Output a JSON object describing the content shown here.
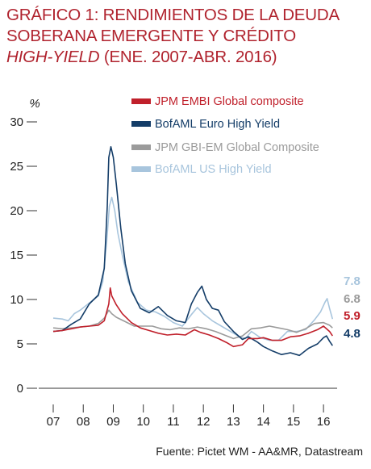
{
  "title": {
    "line1": "GRÁFICO 1: RENDIMIENTOS DE LA DEUDA",
    "line2": "SOBERANA EMERGENTE Y CRÉDITO",
    "line3_italic": "HIGH-YIELD",
    "line3_rest": " (ENE. 2007-ABR. 2016)"
  },
  "source": "Fuente: Pictet WM - AA&MR, Datastream",
  "chart_data": {
    "type": "line",
    "ylabel": "%",
    "ylim": [
      0,
      30
    ],
    "yticks": [
      "0",
      "5",
      "10",
      "15",
      "20",
      "25",
      "30"
    ],
    "xlim": [
      2007.0,
      2016.4
    ],
    "xticks": [
      "07",
      "08",
      "09",
      "10",
      "11",
      "12",
      "13",
      "14",
      "15",
      "16"
    ],
    "legend_position": "top-right",
    "series": [
      {
        "name": "JPM EMBI Global composite",
        "color": "#c0202b",
        "end_label": "5.9",
        "points": [
          [
            2007.0,
            6.4
          ],
          [
            2007.3,
            6.5
          ],
          [
            2007.6,
            6.7
          ],
          [
            2007.9,
            6.9
          ],
          [
            2008.2,
            7.0
          ],
          [
            2008.5,
            7.1
          ],
          [
            2008.7,
            7.6
          ],
          [
            2008.85,
            9.5
          ],
          [
            2008.9,
            11.3
          ],
          [
            2008.95,
            10.4
          ],
          [
            2009.1,
            9.4
          ],
          [
            2009.3,
            8.4
          ],
          [
            2009.6,
            7.4
          ],
          [
            2009.9,
            6.8
          ],
          [
            2010.2,
            6.5
          ],
          [
            2010.5,
            6.2
          ],
          [
            2010.8,
            6.0
          ],
          [
            2011.1,
            6.1
          ],
          [
            2011.4,
            6.0
          ],
          [
            2011.7,
            6.6
          ],
          [
            2011.9,
            6.3
          ],
          [
            2012.2,
            6.0
          ],
          [
            2012.5,
            5.6
          ],
          [
            2012.8,
            5.1
          ],
          [
            2013.0,
            4.7
          ],
          [
            2013.3,
            4.9
          ],
          [
            2013.5,
            5.6
          ],
          [
            2013.8,
            5.6
          ],
          [
            2014.0,
            5.7
          ],
          [
            2014.3,
            5.4
          ],
          [
            2014.6,
            5.4
          ],
          [
            2014.9,
            5.8
          ],
          [
            2015.2,
            5.9
          ],
          [
            2015.5,
            6.2
          ],
          [
            2015.8,
            6.6
          ],
          [
            2016.0,
            7.0
          ],
          [
            2016.2,
            6.4
          ],
          [
            2016.3,
            5.9
          ]
        ]
      },
      {
        "name": "BofAML Euro High Yield",
        "color": "#143d68",
        "end_label": "4.8",
        "points": [
          [
            2007.0,
            6.4
          ],
          [
            2007.3,
            6.5
          ],
          [
            2007.6,
            7.2
          ],
          [
            2007.9,
            7.8
          ],
          [
            2008.2,
            9.5
          ],
          [
            2008.5,
            10.5
          ],
          [
            2008.7,
            13.5
          ],
          [
            2008.8,
            20.5
          ],
          [
            2008.85,
            26.0
          ],
          [
            2008.92,
            27.2
          ],
          [
            2009.0,
            26.0
          ],
          [
            2009.1,
            23.0
          ],
          [
            2009.25,
            18.0
          ],
          [
            2009.4,
            14.0
          ],
          [
            2009.6,
            11.0
          ],
          [
            2009.9,
            9.0
          ],
          [
            2010.2,
            8.5
          ],
          [
            2010.5,
            9.2
          ],
          [
            2010.8,
            8.2
          ],
          [
            2011.1,
            7.6
          ],
          [
            2011.4,
            7.4
          ],
          [
            2011.6,
            9.5
          ],
          [
            2011.8,
            10.8
          ],
          [
            2011.95,
            11.5
          ],
          [
            2012.1,
            10.0
          ],
          [
            2012.3,
            9.0
          ],
          [
            2012.5,
            8.8
          ],
          [
            2012.7,
            7.5
          ],
          [
            2013.0,
            6.4
          ],
          [
            2013.3,
            5.5
          ],
          [
            2013.5,
            5.8
          ],
          [
            2013.8,
            5.2
          ],
          [
            2014.0,
            4.7
          ],
          [
            2014.3,
            4.2
          ],
          [
            2014.6,
            3.8
          ],
          [
            2014.9,
            4.0
          ],
          [
            2015.2,
            3.7
          ],
          [
            2015.5,
            4.5
          ],
          [
            2015.8,
            5.0
          ],
          [
            2016.0,
            5.7
          ],
          [
            2016.1,
            5.9
          ],
          [
            2016.2,
            5.3
          ],
          [
            2016.3,
            4.8
          ]
        ]
      },
      {
        "name": "JPM GBI-EM Global Composite",
        "color": "#9b9b9b",
        "end_label": "6.8",
        "points": [
          [
            2007.0,
            6.8
          ],
          [
            2007.3,
            6.7
          ],
          [
            2007.6,
            6.8
          ],
          [
            2007.9,
            6.9
          ],
          [
            2008.2,
            7.0
          ],
          [
            2008.5,
            7.3
          ],
          [
            2008.7,
            7.9
          ],
          [
            2008.85,
            8.8
          ],
          [
            2008.95,
            8.4
          ],
          [
            2009.1,
            8.0
          ],
          [
            2009.4,
            7.5
          ],
          [
            2009.7,
            7.0
          ],
          [
            2010.0,
            7.0
          ],
          [
            2010.3,
            7.0
          ],
          [
            2010.6,
            6.7
          ],
          [
            2010.9,
            6.6
          ],
          [
            2011.2,
            6.8
          ],
          [
            2011.5,
            6.7
          ],
          [
            2011.8,
            6.9
          ],
          [
            2012.1,
            6.7
          ],
          [
            2012.4,
            6.4
          ],
          [
            2012.7,
            6.0
          ],
          [
            2013.0,
            5.6
          ],
          [
            2013.3,
            5.9
          ],
          [
            2013.6,
            6.7
          ],
          [
            2013.9,
            6.8
          ],
          [
            2014.2,
            7.0
          ],
          [
            2014.5,
            6.8
          ],
          [
            2014.8,
            6.6
          ],
          [
            2015.1,
            6.3
          ],
          [
            2015.4,
            6.7
          ],
          [
            2015.7,
            7.3
          ],
          [
            2016.0,
            7.4
          ],
          [
            2016.2,
            7.1
          ],
          [
            2016.3,
            6.8
          ]
        ]
      },
      {
        "name": "BofAML US High Yield",
        "color": "#a8c5dd",
        "end_label": "7.8",
        "points": [
          [
            2007.0,
            7.9
          ],
          [
            2007.3,
            7.8
          ],
          [
            2007.5,
            7.6
          ],
          [
            2007.7,
            8.4
          ],
          [
            2007.9,
            8.8
          ],
          [
            2008.2,
            9.6
          ],
          [
            2008.5,
            10.4
          ],
          [
            2008.65,
            12.0
          ],
          [
            2008.78,
            16.5
          ],
          [
            2008.87,
            20.5
          ],
          [
            2008.95,
            21.5
          ],
          [
            2009.05,
            20.0
          ],
          [
            2009.15,
            17.5
          ],
          [
            2009.3,
            15.0
          ],
          [
            2009.5,
            12.0
          ],
          [
            2009.8,
            9.7
          ],
          [
            2010.1,
            8.8
          ],
          [
            2010.4,
            8.6
          ],
          [
            2010.7,
            8.1
          ],
          [
            2011.0,
            7.4
          ],
          [
            2011.3,
            7.0
          ],
          [
            2011.6,
            8.3
          ],
          [
            2011.8,
            9.1
          ],
          [
            2012.0,
            8.4
          ],
          [
            2012.3,
            7.6
          ],
          [
            2012.6,
            7.0
          ],
          [
            2012.9,
            6.4
          ],
          [
            2013.2,
            5.8
          ],
          [
            2013.4,
            5.6
          ],
          [
            2013.6,
            6.4
          ],
          [
            2013.9,
            5.7
          ],
          [
            2014.2,
            5.4
          ],
          [
            2014.5,
            5.4
          ],
          [
            2014.8,
            6.4
          ],
          [
            2015.1,
            6.4
          ],
          [
            2015.4,
            6.6
          ],
          [
            2015.7,
            7.7
          ],
          [
            2015.9,
            8.6
          ],
          [
            2016.05,
            9.7
          ],
          [
            2016.12,
            10.1
          ],
          [
            2016.2,
            9.0
          ],
          [
            2016.3,
            7.8
          ]
        ]
      }
    ]
  }
}
